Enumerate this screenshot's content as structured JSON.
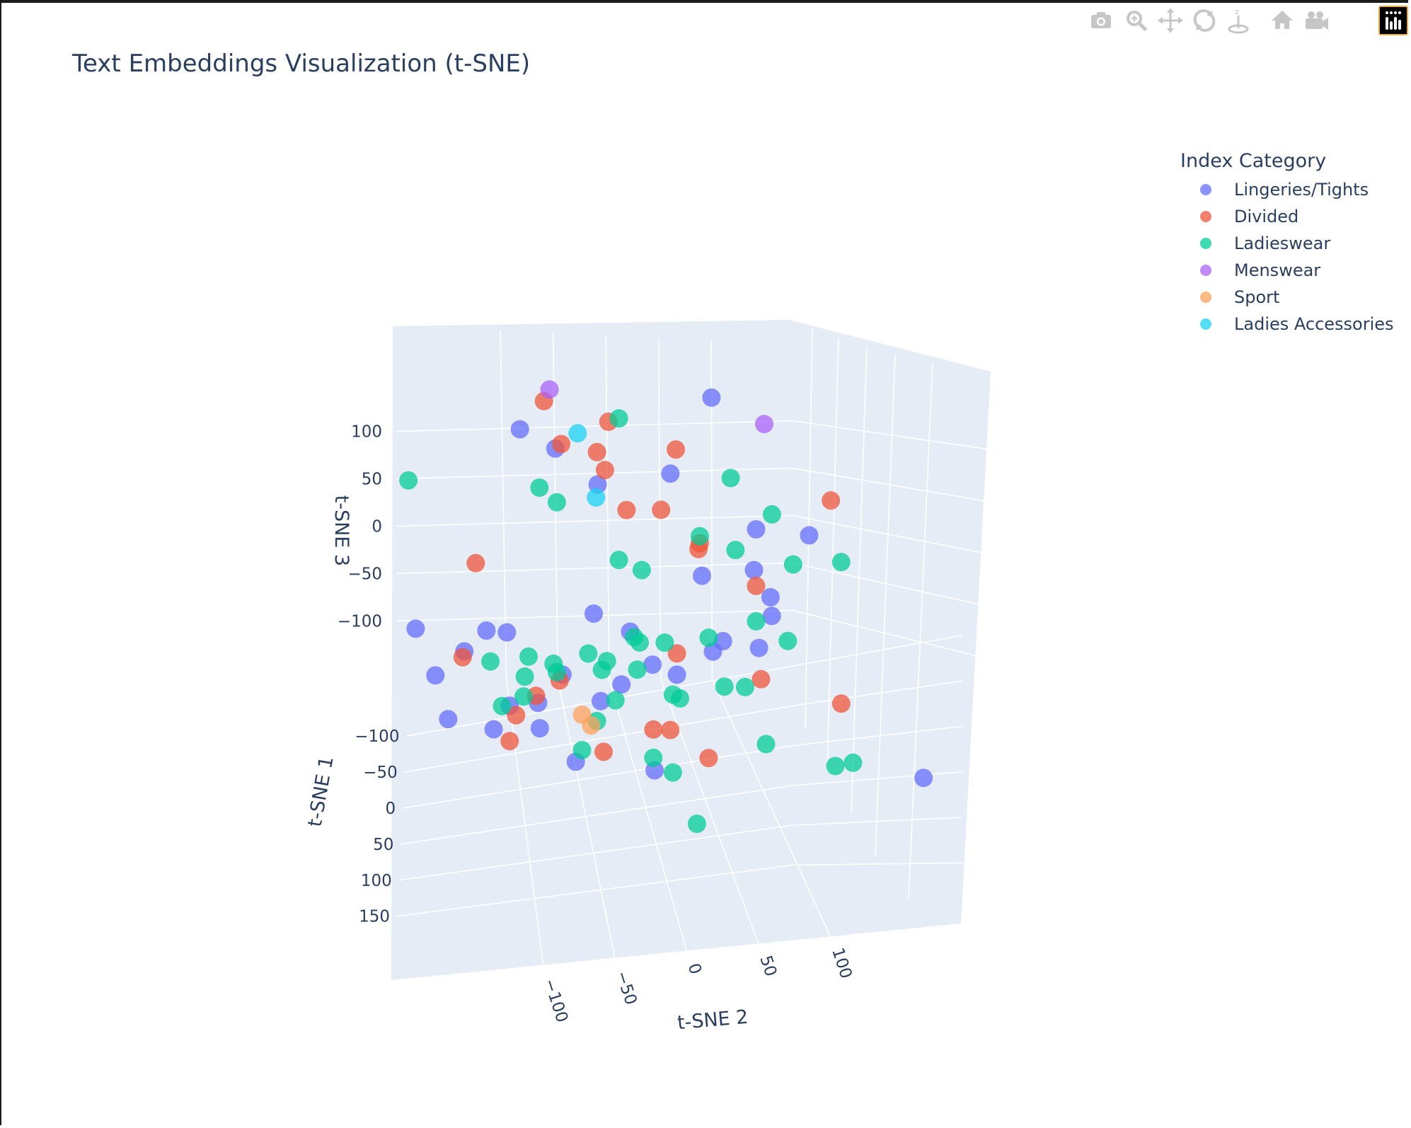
{
  "chart_data": {
    "type": "scatter",
    "title": "Text Embeddings Visualization (t-SNE)",
    "axes": {
      "x": {
        "label": "t-SNE 1",
        "range": [
          -110,
          170
        ],
        "ticks": [
          -100,
          -50,
          0,
          50,
          100,
          150
        ]
      },
      "y": {
        "label": "t-SNE 2",
        "range": [
          -145,
          130
        ],
        "ticks": [
          -100,
          -50,
          0,
          50,
          100
        ]
      },
      "z": {
        "label": "t-SNE 3",
        "range": [
          -140,
          140
        ],
        "ticks": [
          -100,
          -50,
          0,
          50,
          100
        ]
      }
    },
    "grid": true,
    "legend": {
      "title": "Index Category",
      "placement": "right"
    },
    "series": [
      {
        "name": "Lingeries/Tights",
        "color": "#636efa",
        "points": [
          [
            -80,
            -65,
            85
          ],
          [
            -80,
            70,
            100
          ],
          [
            -80,
            -40,
            70
          ],
          [
            -60,
            -15,
            55
          ],
          [
            -60,
            35,
            60
          ],
          [
            -30,
            -110,
            -40
          ],
          [
            -30,
            -80,
            -80
          ],
          [
            -30,
            -45,
            -60
          ],
          [
            -20,
            -130,
            -50
          ],
          [
            -10,
            -5,
            -20
          ],
          [
            -10,
            55,
            -30
          ],
          [
            -5,
            40,
            20
          ],
          [
            10,
            -15,
            -45
          ],
          [
            20,
            -30,
            -50
          ],
          [
            10,
            20,
            -40
          ],
          [
            30,
            0,
            -20
          ],
          [
            -50,
            -20,
            -30
          ],
          [
            -20,
            90,
            -20
          ],
          [
            10,
            70,
            60
          ],
          [
            20,
            100,
            60
          ],
          [
            -70,
            -90,
            -50
          ],
          [
            -75,
            -75,
            -55
          ],
          [
            -85,
            -115,
            -120
          ],
          [
            -70,
            -85,
            -120
          ],
          [
            -65,
            -55,
            -100
          ],
          [
            -85,
            -50,
            -130
          ],
          [
            -60,
            -30,
            -140
          ],
          [
            -45,
            20,
            -140
          ],
          [
            160,
            120,
            -30
          ],
          [
            0,
            75,
            -30
          ],
          [
            -15,
            50,
            -40
          ],
          [
            -25,
            80,
            10
          ],
          [
            -50,
            100,
            -25
          ],
          [
            -60,
            -140,
            -40
          ]
        ]
      },
      {
        "name": "Divided",
        "color": "#ef553b",
        "points": [
          [
            -70,
            -50,
            110
          ],
          [
            -60,
            -10,
            65
          ],
          [
            -60,
            -40,
            85
          ],
          [
            -40,
            -20,
            90
          ],
          [
            -50,
            -10,
            105
          ],
          [
            -30,
            30,
            95
          ],
          [
            -20,
            -5,
            60
          ],
          [
            -10,
            15,
            65
          ],
          [
            -10,
            40,
            40
          ],
          [
            10,
            70,
            20
          ],
          [
            10,
            20,
            -25
          ],
          [
            20,
            70,
            -40
          ],
          [
            -40,
            -45,
            -70
          ],
          [
            -20,
            -20,
            -110
          ],
          [
            -10,
            10,
            -90
          ],
          [
            10,
            40,
            -100
          ],
          [
            20,
            120,
            -60
          ],
          [
            30,
            110,
            90
          ],
          [
            -15,
            -65,
            -65
          ],
          [
            -30,
            -80,
            -105
          ],
          [
            -35,
            -75,
            -90
          ],
          [
            -25,
            25,
            -100
          ],
          [
            5,
            35,
            45
          ],
          [
            -40,
            -110,
            -50
          ],
          [
            -50,
            -100,
            10
          ]
        ]
      },
      {
        "name": "Ladieswear",
        "color": "#00cc96",
        "points": [
          [
            -60,
            -145,
            65
          ],
          [
            -20,
            -10,
            125
          ],
          [
            -10,
            60,
            85
          ],
          [
            -60,
            -55,
            55
          ],
          [
            -50,
            -45,
            50
          ],
          [
            -20,
            -10,
            25
          ],
          [
            -10,
            40,
            45
          ],
          [
            0,
            60,
            40
          ],
          [
            20,
            90,
            40
          ],
          [
            20,
            120,
            40
          ],
          [
            10,
            70,
            -5
          ],
          [
            10,
            90,
            -20
          ],
          [
            -30,
            -70,
            -60
          ],
          [
            -20,
            -30,
            -40
          ],
          [
            -20,
            0,
            -30
          ],
          [
            0,
            20,
            -60
          ],
          [
            10,
            50,
            -50
          ],
          [
            -20,
            30,
            -75
          ],
          [
            -30,
            -10,
            -80
          ],
          [
            -40,
            -20,
            -100
          ],
          [
            -50,
            -90,
            -60
          ],
          [
            10,
            120,
            -110
          ],
          [
            -30,
            -85,
            -80
          ],
          [
            -10,
            10,
            -110
          ],
          [
            30,
            70,
            -80
          ],
          [
            20,
            60,
            -45
          ],
          [
            -25,
            -20,
            -55
          ],
          [
            0,
            20,
            -115
          ],
          [
            -65,
            -65,
            -95
          ],
          [
            40,
            120,
            -90
          ],
          [
            -10,
            -20,
            -40
          ],
          [
            -5,
            0,
            -25
          ],
          [
            -45,
            -65,
            -55
          ],
          [
            10,
            40,
            -15
          ],
          [
            -35,
            -50,
            -55
          ],
          [
            -40,
            -30,
            -120
          ],
          [
            20,
            30,
            -140
          ],
          [
            10,
            -5,
            -35
          ],
          [
            -20,
            20,
            -35
          ],
          [
            10,
            80,
            70
          ],
          [
            -40,
            10,
            5
          ],
          [
            -75,
            -40,
            -85
          ]
        ]
      },
      {
        "name": "Menswear",
        "color": "#ab63fa",
        "points": [
          [
            -50,
            -50,
            130
          ],
          [
            -5,
            80,
            125
          ]
        ]
      },
      {
        "name": "Sport",
        "color": "#ffa15a",
        "points": [
          [
            -40,
            -30,
            -95
          ],
          [
            -35,
            -25,
            -100
          ]
        ]
      },
      {
        "name": "Ladies Accessories",
        "color": "#19d3f3",
        "points": [
          [
            -30,
            -35,
            110
          ],
          [
            -20,
            -25,
            70
          ]
        ]
      }
    ]
  },
  "modebar": {
    "buttons": [
      "camera-icon",
      "zoom-icon",
      "pan-icon",
      "orbit-rotation-icon",
      "turntable-rotation-icon",
      "home-icon",
      "camera-view-icon"
    ]
  }
}
